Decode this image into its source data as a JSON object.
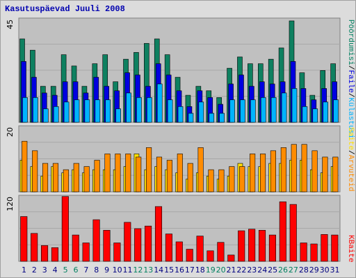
{
  "title": "Kasutuspäevad Juuli 2008",
  "colors": {
    "pages": "#0e8060",
    "files": "#0000e0",
    "hits": "#00b4ff",
    "visits": "#ff8c00",
    "sites": "#ffe000",
    "kbytes": "#ff0000",
    "weekend_label": "#008060",
    "weekday_label": "#000080",
    "panel_bg": "#c0c0c0"
  },
  "legend": {
    "top": [
      {
        "text": "Pöördumisi",
        "color": "#008060"
      },
      {
        "text": "/",
        "color": "#000000"
      },
      {
        "text": "Faile",
        "color": "#0000e0"
      },
      {
        "text": "/",
        "color": "#000000"
      },
      {
        "text": "Külastusi",
        "color": "#00b4ff"
      }
    ],
    "middle": [
      {
        "text": "Saite",
        "color": "#ffe000"
      },
      {
        "text": "/",
        "color": "#000000"
      },
      {
        "text": "Arvuteid",
        "color": "#ff8c00"
      }
    ],
    "bottom": [
      {
        "text": "KBaite",
        "color": "#ff0000"
      }
    ]
  },
  "chart_data": [
    {
      "type": "bar",
      "ymax_label": "45",
      "ylim": [
        0,
        45
      ],
      "categories": [
        "1",
        "2",
        "3",
        "4",
        "5",
        "6",
        "7",
        "8",
        "9",
        "10",
        "11",
        "12",
        "13",
        "14",
        "15",
        "16",
        "17",
        "18",
        "19",
        "20",
        "21",
        "22",
        "23",
        "24",
        "25",
        "26",
        "27",
        "28",
        "29",
        "30",
        "31"
      ],
      "weekend": [
        false,
        false,
        false,
        false,
        true,
        true,
        false,
        false,
        false,
        false,
        false,
        true,
        true,
        false,
        false,
        false,
        false,
        false,
        true,
        true,
        false,
        false,
        false,
        false,
        false,
        true,
        true,
        false,
        false,
        false,
        false
      ],
      "series": [
        {
          "key": "pages",
          "values": [
            37,
            32,
            16,
            16,
            30,
            25,
            16,
            26,
            30,
            18,
            28,
            31,
            35,
            37,
            30,
            20,
            12,
            16,
            14,
            11,
            24,
            29,
            26,
            26,
            28,
            33,
            45,
            22,
            12,
            23,
            26
          ]
        },
        {
          "key": "files",
          "values": [
            27,
            20,
            13,
            12,
            18,
            18,
            13,
            20,
            16,
            14,
            22,
            21,
            16,
            26,
            21,
            14,
            7,
            14,
            11,
            8,
            17,
            21,
            16,
            18,
            17,
            18,
            27,
            15,
            10,
            15,
            18
          ]
        },
        {
          "key": "hits",
          "values": [
            11,
            11,
            6,
            7,
            9,
            10,
            10,
            10,
            10,
            6,
            13,
            11,
            11,
            17,
            10,
            7,
            4,
            9,
            4,
            4,
            10,
            10,
            10,
            11,
            11,
            13,
            15,
            7,
            6,
            9,
            10
          ]
        }
      ]
    },
    {
      "type": "bar",
      "ymax_label": "20",
      "ylim": [
        0,
        20
      ],
      "series": [
        {
          "key": "visits",
          "values": [
            16,
            13,
            9,
            9,
            7,
            9,
            8,
            10,
            12,
            12,
            12,
            11,
            14,
            11,
            10,
            12,
            9,
            14,
            7,
            7,
            8,
            8,
            12,
            12,
            13,
            14,
            15,
            15,
            13,
            11,
            11
          ]
        },
        {
          "key": "sites",
          "values": [
            10,
            8,
            5,
            8,
            6,
            7,
            6,
            7,
            7,
            7,
            8,
            12,
            7,
            8,
            7,
            6,
            4,
            6,
            5,
            4,
            5,
            9,
            8,
            8,
            9,
            9,
            10,
            10,
            7,
            6,
            8
          ]
        }
      ]
    },
    {
      "type": "bar",
      "ymax_label": "120",
      "ylim": [
        0,
        120
      ],
      "series": [
        {
          "key": "kbytes",
          "values": [
            85,
            53,
            30,
            26,
            123,
            50,
            35,
            79,
            59,
            35,
            74,
            62,
            67,
            104,
            52,
            37,
            23,
            48,
            20,
            36,
            12,
            58,
            61,
            59,
            50,
            113,
            108,
            35,
            33,
            51,
            50
          ]
        }
      ]
    }
  ]
}
